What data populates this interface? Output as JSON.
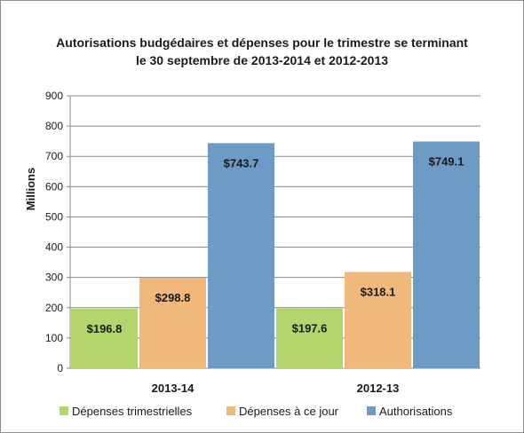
{
  "chart_data": {
    "type": "bar",
    "title": "Autorisations budgédaires et dépenses pour le trimestre se terminant le 30 septembre de 2013-2014 et 2012-2013",
    "title_lines": [
      "Autorisations budgédaires et dépenses pour le trimestre se terminant",
      "le 30 septembre de 2013-2014 et 2012-2013"
    ],
    "ylabel": "Millions",
    "xlabel": "",
    "ylim": [
      0,
      900
    ],
    "yticks": [
      0,
      100,
      200,
      300,
      400,
      500,
      600,
      700,
      800,
      900
    ],
    "grid": true,
    "legend_position": "bottom",
    "categories": [
      "2013-14",
      "2012-13"
    ],
    "series": [
      {
        "name": "Dépenses trimestrielles",
        "values": [
          196.8,
          197.6
        ],
        "labels": [
          "$196.8",
          "$197.6"
        ],
        "color": "#b3d56c"
      },
      {
        "name": "Dépenses à ce jour",
        "values": [
          298.8,
          318.1
        ],
        "labels": [
          "$298.8",
          "$318.1"
        ],
        "color": "#f0b87a"
      },
      {
        "name": "Authorisations",
        "values": [
          743.7,
          749.1
        ],
        "labels": [
          "$743.7",
          "$749.1"
        ],
        "color": "#6e9bc5"
      }
    ]
  }
}
